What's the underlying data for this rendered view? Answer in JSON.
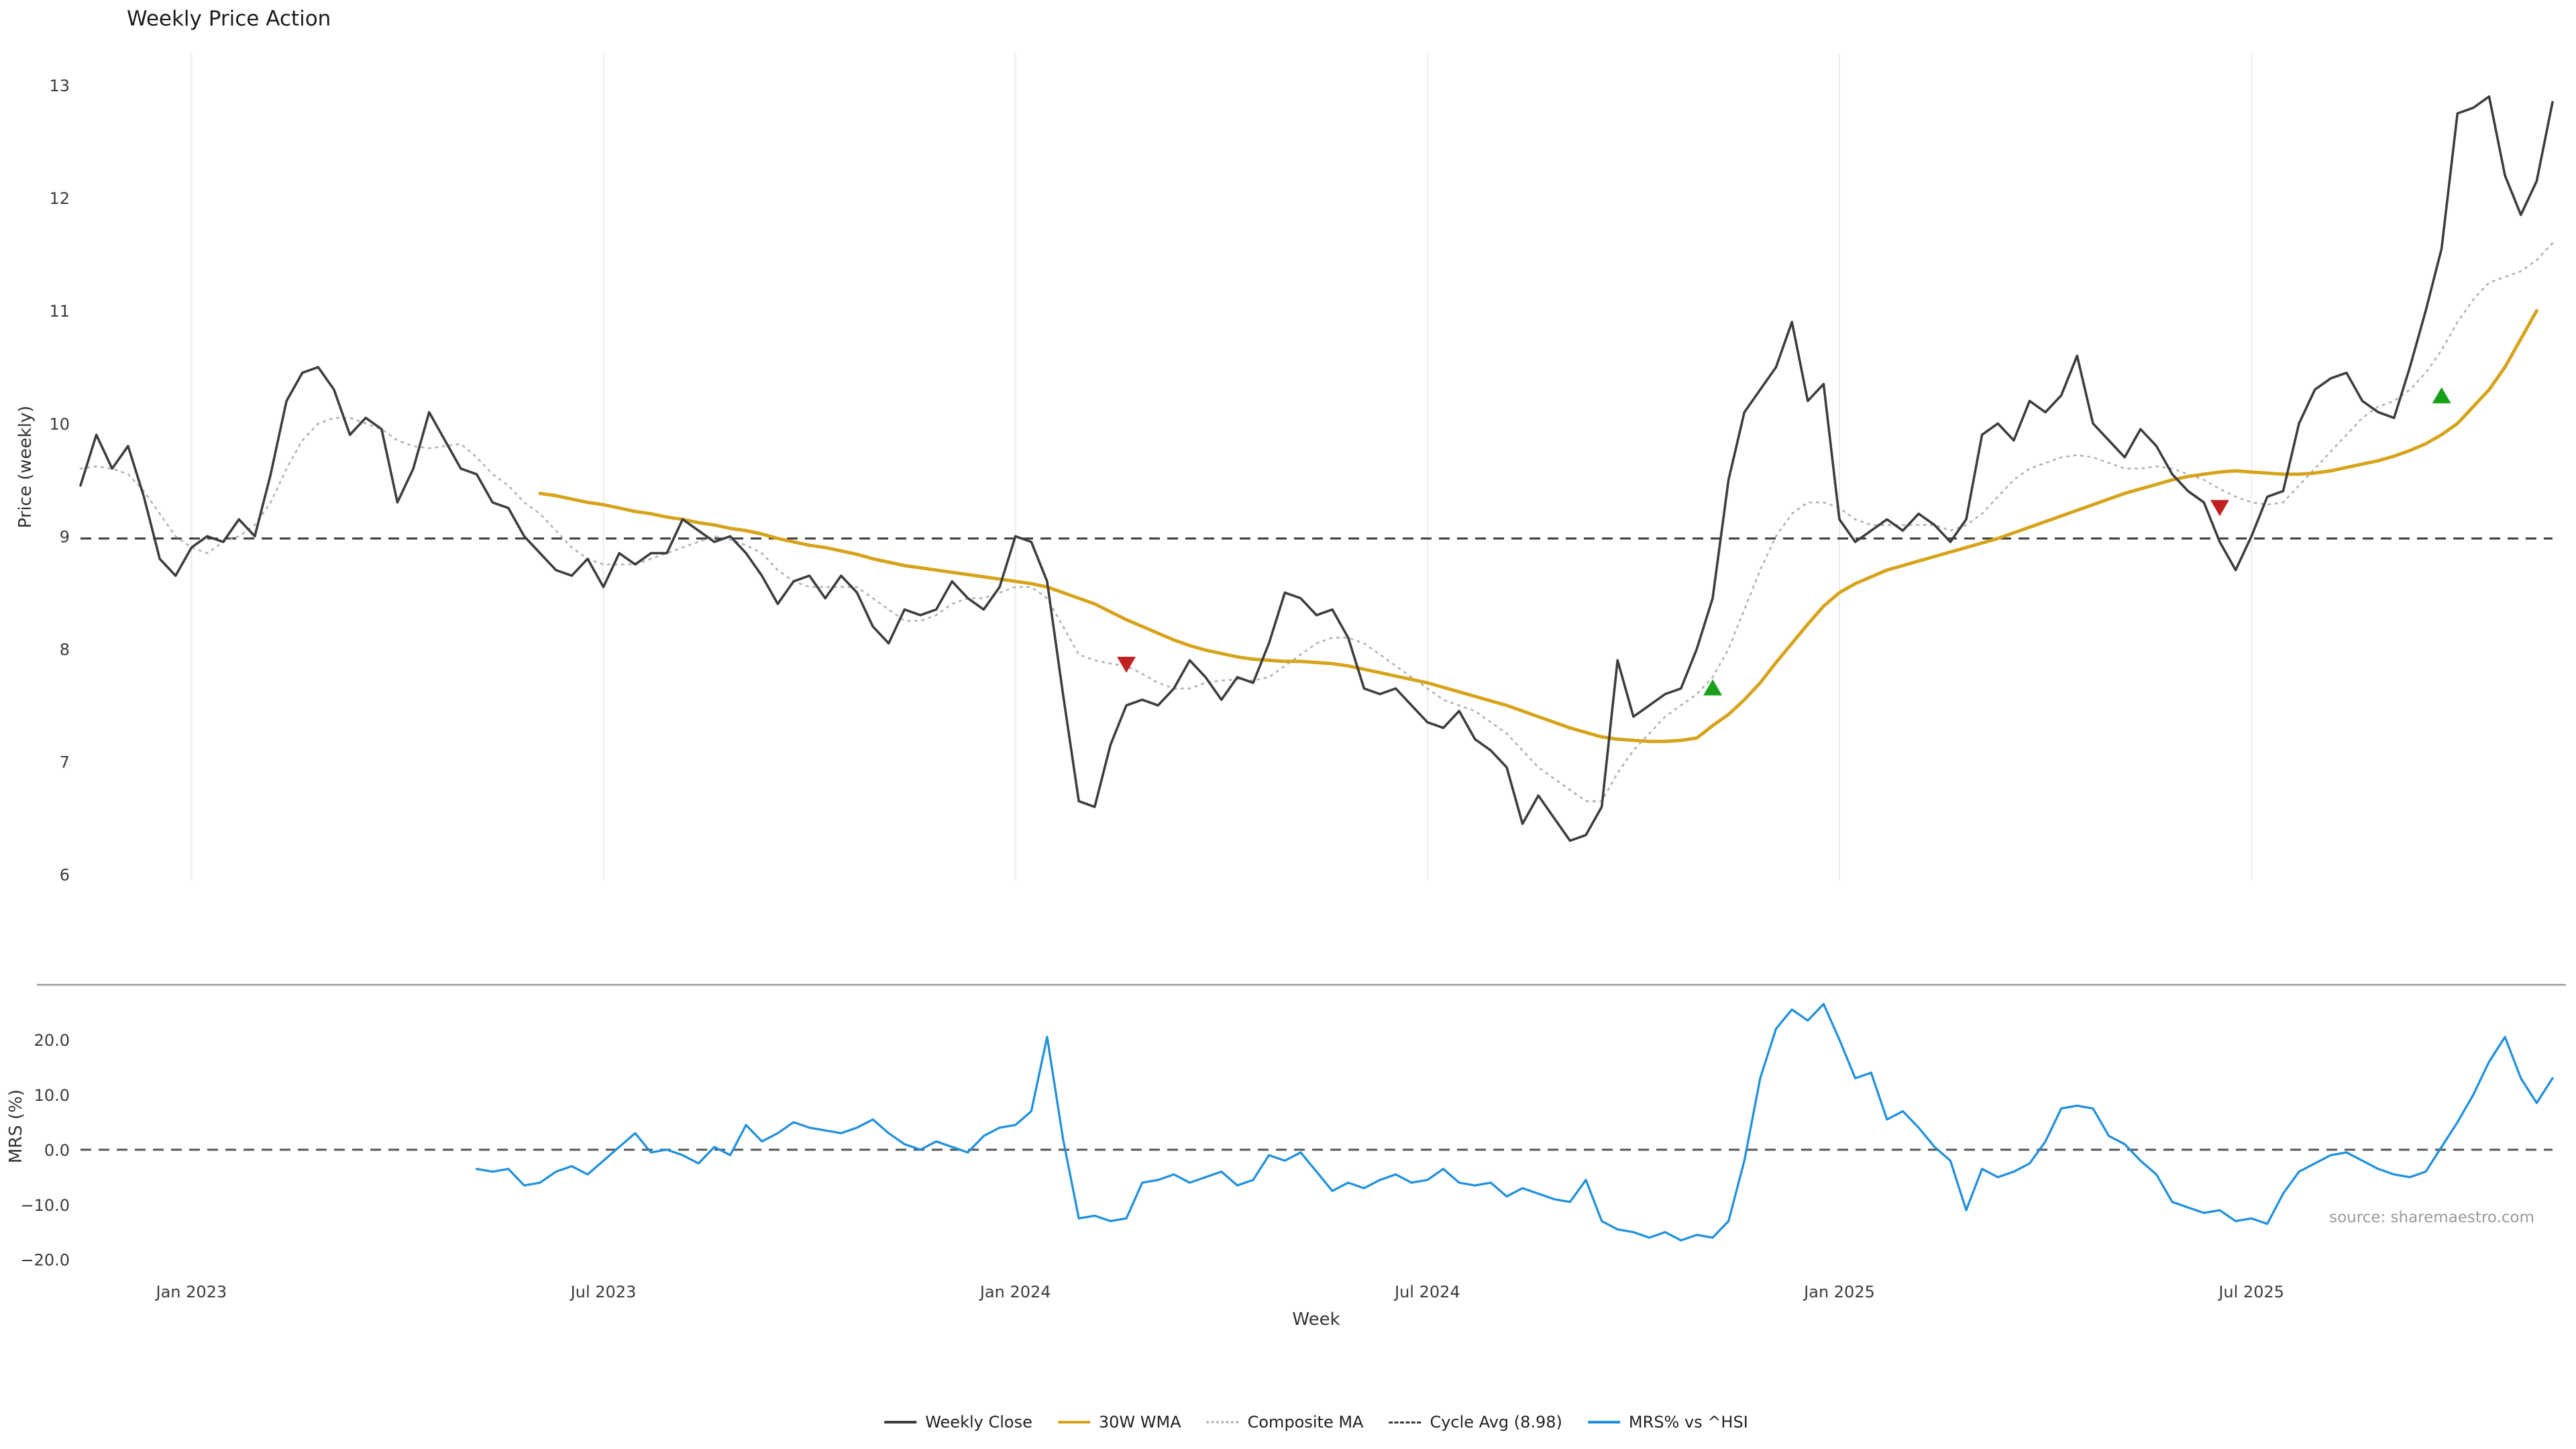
{
  "title": "Weekly Price Action",
  "source": "source: sharemaestro.com",
  "legend": [
    {
      "label": "Weekly Close",
      "color": "#3d3d3d",
      "style": "solid"
    },
    {
      "label": "30W WMA",
      "color": "#d6a31a",
      "style": "solid"
    },
    {
      "label": "Composite MA",
      "color": "#b5b5b5",
      "style": "dotted"
    },
    {
      "label": "Cycle Avg (8.98)",
      "color": "#3a3a3a",
      "style": "dashed"
    },
    {
      "label": "MRS% vs ^HSI",
      "color": "#2191dd",
      "style": "solid"
    }
  ],
  "chart_data": {
    "type": "line",
    "title": "Weekly Price Action",
    "xlabel": "Week",
    "x_unit": "week_index",
    "grid": "vertical-ticks-only",
    "legend_position": "bottom-center",
    "x_ticks": [
      {
        "week": 7,
        "label": "Jan 2023"
      },
      {
        "week": 33,
        "label": "Jul 2023"
      },
      {
        "week": 59,
        "label": "Jan 2024"
      },
      {
        "week": 85,
        "label": "Jul 2024"
      },
      {
        "week": 111,
        "label": "Jan 2025"
      },
      {
        "week": 137,
        "label": "Jul 2025"
      }
    ],
    "panels": [
      {
        "name": "price",
        "ylabel": "Price (weekly)",
        "ylim": [
          5.95,
          13.28
        ],
        "yticks": [
          13,
          12,
          11,
          10,
          9,
          8,
          7,
          6
        ]
      },
      {
        "name": "mrs",
        "ylabel": "MRS (%)",
        "ylim": [
          -21.5,
          30
        ],
        "yticks": [
          20,
          10,
          0,
          -10,
          -20
        ],
        "ytick_labels": [
          "20.0",
          "10.0",
          "0.0",
          "−10.0",
          "−20.0"
        ]
      }
    ],
    "cycle_avg": 8.98,
    "reference_lines": [
      {
        "name": "Cycle Avg (8.98)",
        "panel": "price",
        "value": 8.98,
        "style": "dashed",
        "color": "#3a3a3a"
      },
      {
        "name": "Zero",
        "panel": "mrs",
        "value": 0,
        "style": "dashed",
        "color": "#555555"
      }
    ],
    "signals": [
      {
        "type": "sell",
        "week": 66,
        "price": 7.86,
        "color": "#c22121"
      },
      {
        "type": "buy",
        "week": 103,
        "price": 7.66,
        "color": "#18a018"
      },
      {
        "type": "sell",
        "week": 135,
        "price": 9.25,
        "color": "#c22121"
      },
      {
        "type": "buy",
        "week": 149,
        "price": 10.25,
        "color": "#18a018"
      }
    ],
    "series": [
      {
        "name": "Weekly Close",
        "panel": "price",
        "color": "#3d3d3d",
        "style": "solid",
        "values": [
          9.45,
          9.9,
          9.6,
          9.8,
          9.35,
          8.8,
          8.65,
          8.9,
          9.0,
          8.95,
          9.15,
          9.0,
          9.55,
          10.2,
          10.45,
          10.5,
          10.3,
          9.9,
          10.05,
          9.95,
          9.3,
          9.6,
          10.1,
          9.85,
          9.6,
          9.55,
          9.3,
          9.25,
          9.0,
          8.85,
          8.7,
          8.65,
          8.8,
          8.55,
          8.85,
          8.75,
          8.85,
          8.85,
          9.15,
          9.05,
          8.95,
          9.0,
          8.85,
          8.65,
          8.4,
          8.6,
          8.65,
          8.45,
          8.65,
          8.5,
          8.2,
          8.05,
          8.35,
          8.3,
          8.35,
          8.6,
          8.45,
          8.35,
          8.55,
          9.0,
          8.95,
          8.6,
          7.6,
          6.65,
          6.6,
          7.15,
          7.5,
          7.55,
          7.5,
          7.65,
          7.9,
          7.75,
          7.55,
          7.75,
          7.7,
          8.05,
          8.5,
          8.45,
          8.3,
          8.35,
          8.1,
          7.65,
          7.6,
          7.65,
          7.5,
          7.35,
          7.3,
          7.45,
          7.2,
          7.1,
          6.95,
          6.45,
          6.7,
          6.5,
          6.3,
          6.35,
          6.6,
          7.9,
          7.4,
          7.5,
          7.6,
          7.65,
          8.0,
          8.45,
          9.5,
          10.1,
          10.3,
          10.5,
          10.9,
          10.2,
          10.35,
          9.15,
          8.95,
          9.05,
          9.15,
          9.05,
          9.2,
          9.1,
          8.95,
          9.15,
          9.9,
          10.0,
          9.85,
          10.2,
          10.1,
          10.25,
          10.6,
          10.0,
          9.85,
          9.7,
          9.95,
          9.8,
          9.55,
          9.4,
          9.3,
          8.95,
          8.7,
          9.0,
          9.35,
          9.4,
          10.0,
          10.3,
          10.4,
          10.45,
          10.2,
          10.1,
          10.05,
          10.5,
          11.0,
          11.55,
          12.75,
          12.8,
          12.9,
          12.2,
          11.85,
          12.15,
          12.85
        ]
      },
      {
        "name": "30W WMA",
        "panel": "price",
        "color": "#d6a31a",
        "style": "solid",
        "values": [
          null,
          null,
          null,
          null,
          null,
          null,
          null,
          null,
          null,
          null,
          null,
          null,
          null,
          null,
          null,
          null,
          null,
          null,
          null,
          null,
          null,
          null,
          null,
          null,
          null,
          null,
          null,
          null,
          null,
          9.38,
          9.36,
          9.33,
          9.3,
          9.28,
          9.25,
          9.22,
          9.2,
          9.17,
          9.15,
          9.12,
          9.1,
          9.07,
          9.05,
          9.02,
          8.98,
          8.95,
          8.92,
          8.9,
          8.87,
          8.84,
          8.8,
          8.77,
          8.74,
          8.72,
          8.7,
          8.68,
          8.66,
          8.64,
          8.62,
          8.6,
          8.58,
          8.55,
          8.5,
          8.45,
          8.4,
          8.33,
          8.26,
          8.2,
          8.14,
          8.08,
          8.03,
          7.99,
          7.96,
          7.93,
          7.91,
          7.9,
          7.89,
          7.89,
          7.88,
          7.87,
          7.85,
          7.82,
          7.79,
          7.76,
          7.73,
          7.7,
          7.66,
          7.62,
          7.58,
          7.54,
          7.5,
          7.45,
          7.4,
          7.35,
          7.3,
          7.26,
          7.22,
          7.2,
          7.19,
          7.18,
          7.18,
          7.19,
          7.21,
          7.32,
          7.42,
          7.55,
          7.7,
          7.88,
          8.05,
          8.22,
          8.38,
          8.5,
          8.58,
          8.64,
          8.7,
          8.74,
          8.78,
          8.82,
          8.86,
          8.9,
          8.94,
          8.98,
          9.03,
          9.08,
          9.13,
          9.18,
          9.23,
          9.28,
          9.33,
          9.38,
          9.42,
          9.46,
          9.5,
          9.53,
          9.55,
          9.57,
          9.58,
          9.57,
          9.56,
          9.55,
          9.55,
          9.56,
          9.58,
          9.61,
          9.64,
          9.67,
          9.71,
          9.76,
          9.82,
          9.9,
          10.0,
          10.15,
          10.3,
          10.5,
          10.75,
          11.0
        ]
      },
      {
        "name": "Composite MA",
        "panel": "price",
        "color": "#b5b5b5",
        "style": "dotted",
        "values": [
          9.6,
          9.62,
          9.6,
          9.55,
          9.4,
          9.2,
          9.0,
          8.9,
          8.85,
          8.95,
          9.0,
          9.1,
          9.3,
          9.6,
          9.85,
          10.0,
          10.05,
          10.05,
          10.0,
          9.95,
          9.85,
          9.8,
          9.78,
          9.8,
          9.82,
          9.7,
          9.55,
          9.45,
          9.3,
          9.2,
          9.05,
          8.9,
          8.8,
          8.75,
          8.75,
          8.75,
          8.8,
          8.85,
          8.9,
          8.95,
          9.0,
          8.97,
          8.92,
          8.85,
          8.7,
          8.6,
          8.55,
          8.55,
          8.55,
          8.55,
          8.45,
          8.35,
          8.25,
          8.25,
          8.3,
          8.4,
          8.45,
          8.45,
          8.5,
          8.55,
          8.55,
          8.45,
          8.2,
          7.95,
          7.9,
          7.87,
          7.85,
          7.78,
          7.7,
          7.65,
          7.65,
          7.7,
          7.72,
          7.73,
          7.72,
          7.75,
          7.85,
          7.95,
          8.05,
          8.1,
          8.1,
          8.05,
          7.95,
          7.85,
          7.75,
          7.65,
          7.55,
          7.5,
          7.45,
          7.35,
          7.25,
          7.1,
          6.95,
          6.85,
          6.75,
          6.65,
          6.65,
          6.9,
          7.1,
          7.25,
          7.4,
          7.5,
          7.6,
          7.75,
          8.0,
          8.35,
          8.7,
          9.0,
          9.2,
          9.3,
          9.3,
          9.25,
          9.15,
          9.1,
          9.1,
          9.1,
          9.1,
          9.1,
          9.05,
          9.1,
          9.2,
          9.35,
          9.5,
          9.6,
          9.65,
          9.7,
          9.72,
          9.7,
          9.65,
          9.6,
          9.6,
          9.62,
          9.6,
          9.55,
          9.5,
          9.42,
          9.35,
          9.3,
          9.28,
          9.3,
          9.45,
          9.6,
          9.75,
          9.9,
          10.05,
          10.15,
          10.2,
          10.3,
          10.45,
          10.65,
          10.9,
          11.1,
          11.25,
          11.3,
          11.35,
          11.45,
          11.6
        ]
      },
      {
        "name": "MRS% vs ^HSI",
        "panel": "mrs",
        "color": "#2191dd",
        "style": "solid",
        "values": [
          null,
          null,
          null,
          null,
          null,
          null,
          null,
          null,
          null,
          null,
          null,
          null,
          null,
          null,
          null,
          null,
          null,
          null,
          null,
          null,
          null,
          null,
          null,
          null,
          null,
          -3.5,
          -4.0,
          -3.5,
          -6.5,
          -6.0,
          -4.0,
          -3.0,
          -4.5,
          -2.0,
          0.5,
          3.0,
          -0.5,
          0.0,
          -1.0,
          -2.5,
          0.5,
          -1.0,
          4.5,
          1.5,
          3.0,
          5.0,
          4.0,
          3.5,
          3.0,
          4.0,
          5.5,
          3.0,
          1.0,
          0.0,
          1.5,
          0.5,
          -0.5,
          2.5,
          4.0,
          4.5,
          7.0,
          20.5,
          2.0,
          -12.5,
          -12.0,
          -13.0,
          -12.5,
          -6.0,
          -5.5,
          -4.5,
          -6.0,
          -5.0,
          -4.0,
          -6.5,
          -5.5,
          -1.0,
          -2.0,
          -0.5,
          -4.0,
          -7.5,
          -6.0,
          -7.0,
          -5.5,
          -4.5,
          -6.0,
          -5.5,
          -3.5,
          -6.0,
          -6.5,
          -6.0,
          -8.5,
          -7.0,
          -8.0,
          -9.0,
          -9.5,
          -5.5,
          -13.0,
          -14.5,
          -15.0,
          -16.0,
          -15.0,
          -16.5,
          -15.5,
          -16.0,
          -13.0,
          -2.0,
          13.0,
          22.0,
          25.5,
          23.5,
          26.5,
          20.0,
          13.0,
          14.0,
          5.5,
          7.0,
          4.0,
          0.5,
          -2.0,
          -11.0,
          -3.5,
          -5.0,
          -4.0,
          -2.5,
          1.5,
          7.5,
          8.0,
          7.5,
          2.5,
          1.0,
          -2.0,
          -4.5,
          -9.5,
          -10.5,
          -11.5,
          -11.0,
          -13.0,
          -12.5,
          -13.5,
          -8.0,
          -4.0,
          -2.5,
          -1.0,
          -0.5,
          -2.0,
          -3.5,
          -4.5,
          -5.0,
          -4.0,
          0.5,
          5.0,
          10.0,
          16.0,
          20.5,
          13.0,
          8.5,
          13.0
        ]
      }
    ]
  }
}
